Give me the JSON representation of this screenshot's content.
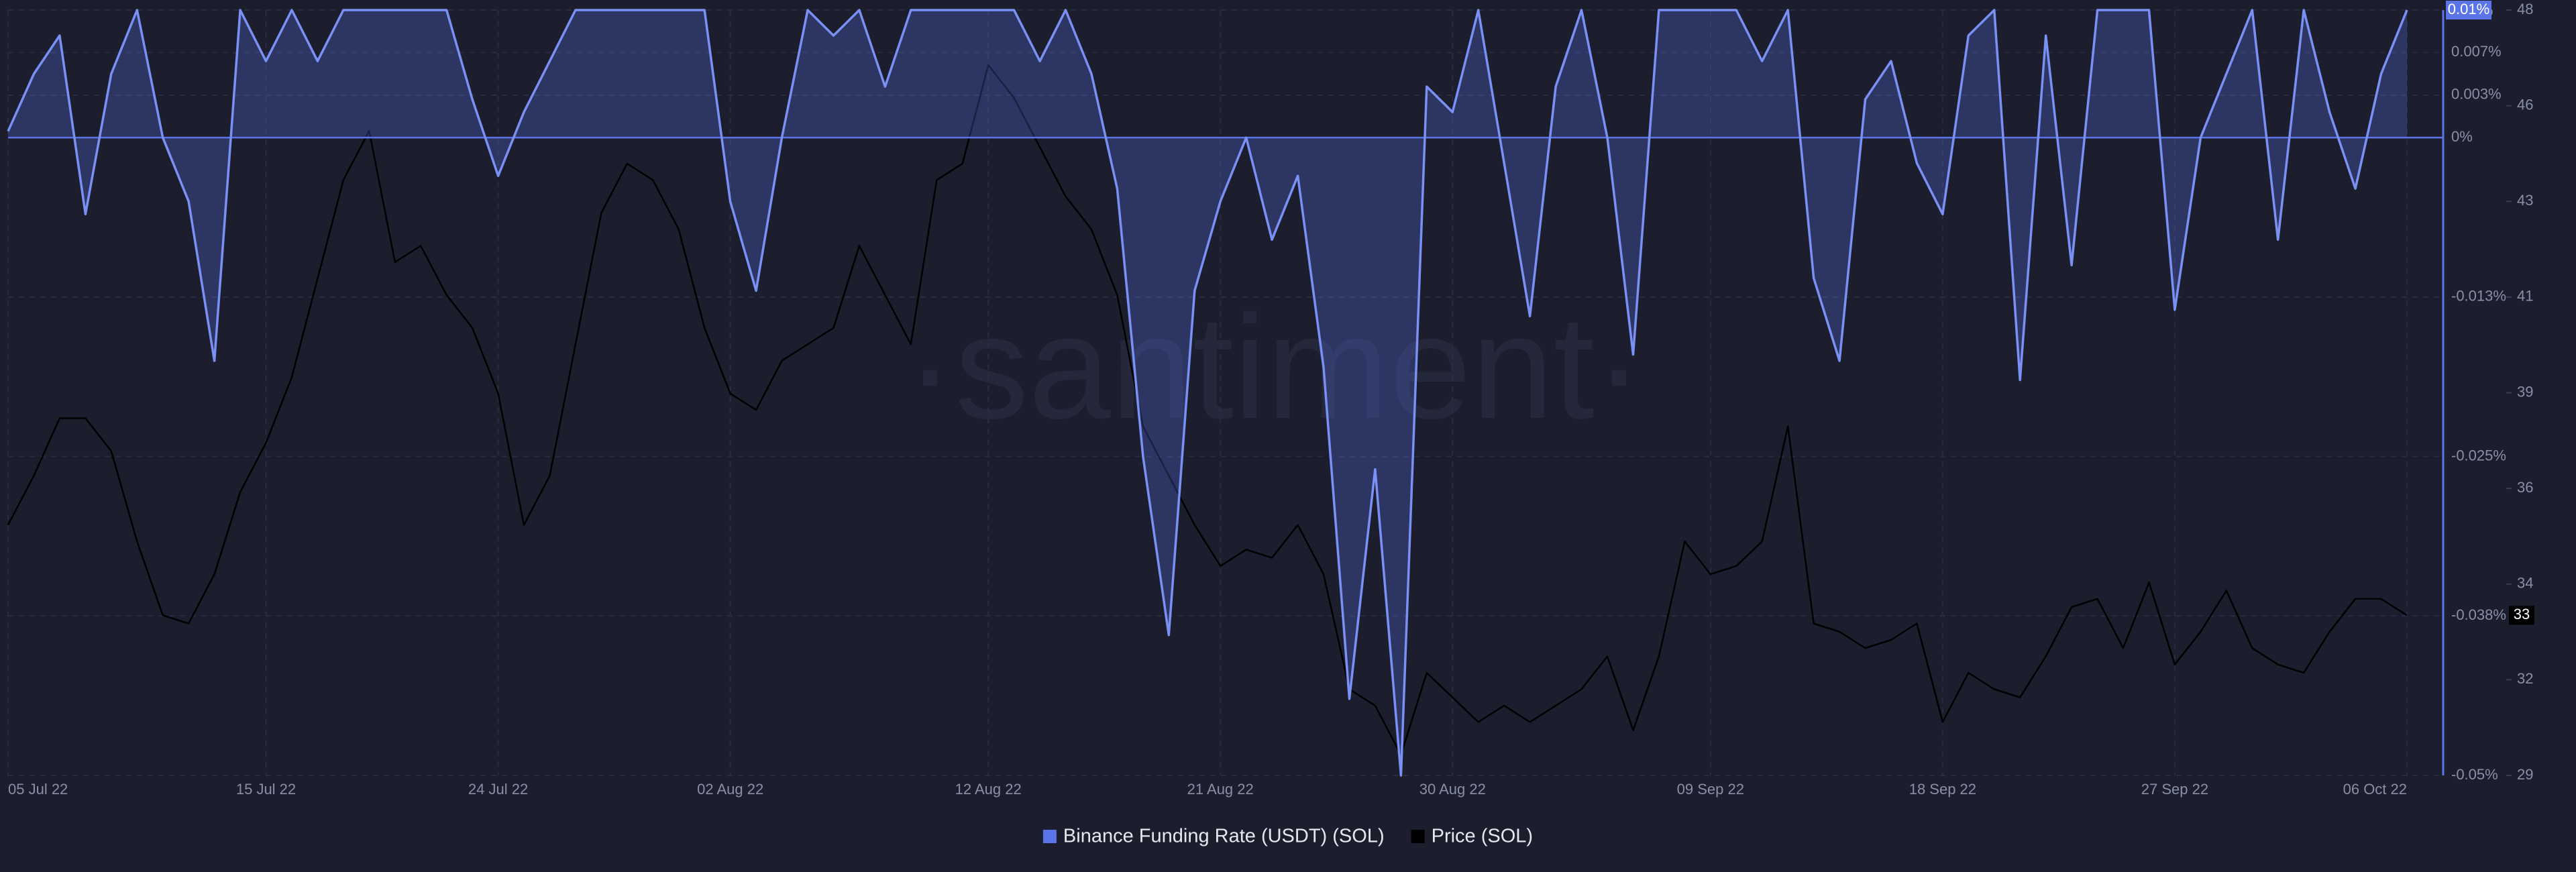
{
  "chart_data": {
    "type": "line",
    "watermark": "·santiment·",
    "x": [
      "2022-07-05",
      "2022-07-06",
      "2022-07-07",
      "2022-07-08",
      "2022-07-09",
      "2022-07-10",
      "2022-07-11",
      "2022-07-12",
      "2022-07-13",
      "2022-07-14",
      "2022-07-15",
      "2022-07-16",
      "2022-07-17",
      "2022-07-18",
      "2022-07-19",
      "2022-07-20",
      "2022-07-21",
      "2022-07-22",
      "2022-07-23",
      "2022-07-24",
      "2022-07-25",
      "2022-07-26",
      "2022-07-27",
      "2022-07-28",
      "2022-07-29",
      "2022-07-30",
      "2022-07-31",
      "2022-08-01",
      "2022-08-02",
      "2022-08-03",
      "2022-08-04",
      "2022-08-05",
      "2022-08-06",
      "2022-08-07",
      "2022-08-08",
      "2022-08-09",
      "2022-08-10",
      "2022-08-11",
      "2022-08-12",
      "2022-08-13",
      "2022-08-14",
      "2022-08-15",
      "2022-08-16",
      "2022-08-17",
      "2022-08-18",
      "2022-08-19",
      "2022-08-20",
      "2022-08-21",
      "2022-08-22",
      "2022-08-23",
      "2022-08-24",
      "2022-08-25",
      "2022-08-26",
      "2022-08-27",
      "2022-08-28",
      "2022-08-29",
      "2022-08-30",
      "2022-08-31",
      "2022-09-01",
      "2022-09-02",
      "2022-09-03",
      "2022-09-04",
      "2022-09-05",
      "2022-09-06",
      "2022-09-07",
      "2022-09-08",
      "2022-09-09",
      "2022-09-10",
      "2022-09-11",
      "2022-09-12",
      "2022-09-13",
      "2022-09-14",
      "2022-09-15",
      "2022-09-16",
      "2022-09-17",
      "2022-09-18",
      "2022-09-19",
      "2022-09-20",
      "2022-09-21",
      "2022-09-22",
      "2022-09-23",
      "2022-09-24",
      "2022-09-25",
      "2022-09-26",
      "2022-09-27",
      "2022-09-28",
      "2022-09-29",
      "2022-09-30",
      "2022-10-01",
      "2022-10-02",
      "2022-10-03",
      "2022-10-04",
      "2022-10-05",
      "2022-10-06"
    ],
    "xlim": [
      "2022-07-05",
      "2022-10-06"
    ],
    "xticks": [
      {
        "value": "2022-07-05",
        "label": "05 Jul 22"
      },
      {
        "value": "2022-07-15",
        "label": "15 Jul 22"
      },
      {
        "value": "2022-07-24",
        "label": "24 Jul 22"
      },
      {
        "value": "2022-08-02",
        "label": "02 Aug 22"
      },
      {
        "value": "2022-08-12",
        "label": "12 Aug 22"
      },
      {
        "value": "2022-08-21",
        "label": "21 Aug 22"
      },
      {
        "value": "2022-08-30",
        "label": "30 Aug 22"
      },
      {
        "value": "2022-09-09",
        "label": "09 Sep 22"
      },
      {
        "value": "2022-09-18",
        "label": "18 Sep 22"
      },
      {
        "value": "2022-09-27",
        "label": "27 Sep 22"
      },
      {
        "value": "2022-10-06",
        "label": "06 Oct 22"
      }
    ],
    "ylim": [
      -0.05,
      0.01
    ],
    "yticks": [
      {
        "value": 0.01,
        "label": "0.01%"
      },
      {
        "value": 0.00667,
        "label": "0.007%"
      },
      {
        "value": 0.00333,
        "label": "0.003%"
      },
      {
        "value": 0,
        "label": "0%"
      },
      {
        "value": -0.0125,
        "label": "-0.013%"
      },
      {
        "value": -0.025,
        "label": "-0.025%"
      },
      {
        "value": -0.0375,
        "label": "-0.038%"
      },
      {
        "value": -0.05,
        "label": "-0.05%"
      }
    ],
    "y2lim": [
      29.3,
      47.94
    ],
    "y2ticks": [
      {
        "value": 29.3,
        "label": "29"
      },
      {
        "value": 31.63,
        "label": "32"
      },
      {
        "value": 33.96,
        "label": "34"
      },
      {
        "value": 36.29,
        "label": "36"
      },
      {
        "value": 38.62,
        "label": "39"
      },
      {
        "value": 40.95,
        "label": "41"
      },
      {
        "value": 43.28,
        "label": "43"
      },
      {
        "value": 45.61,
        "label": "46"
      },
      {
        "value": 47.94,
        "label": "48"
      }
    ],
    "grid": true,
    "legend": "bottom",
    "series": [
      {
        "name": "Binance Funding Rate (USDT) (SOL)",
        "color": "#5b74e8",
        "axis": "y",
        "last_label": "0.01%",
        "values": [
          0.0005,
          0.005,
          0.008,
          -0.006,
          0.005,
          0.01,
          0.0,
          -0.005,
          -0.0175,
          0.01,
          0.006,
          0.01,
          0.006,
          0.01,
          0.01,
          0.01,
          0.01,
          0.01,
          0.003,
          -0.003,
          0.002,
          0.006,
          0.01,
          0.01,
          0.01,
          0.01,
          0.01,
          0.01,
          -0.005,
          -0.012,
          0.0,
          0.01,
          0.008,
          0.01,
          0.004,
          0.01,
          0.01,
          0.01,
          0.01,
          0.01,
          0.006,
          0.01,
          0.005,
          -0.004,
          -0.025,
          -0.039,
          -0.012,
          -0.005,
          0.0,
          -0.008,
          -0.003,
          -0.018,
          -0.044,
          -0.026,
          -0.05,
          0.004,
          0.002,
          0.01,
          -0.002,
          -0.014,
          0.004,
          0.01,
          0.0,
          -0.017,
          0.01,
          0.01,
          0.01,
          0.01,
          0.006,
          0.01,
          -0.011,
          -0.0175,
          0.003,
          0.006,
          -0.002,
          -0.006,
          0.008,
          0.01,
          -0.019,
          0.008,
          -0.01,
          0.01,
          0.01,
          0.01,
          -0.0135,
          0.0,
          0.005,
          0.01,
          -0.008,
          0.01,
          0.002,
          -0.004,
          0.005,
          0.01
        ]
      },
      {
        "name": "Price (SOL)",
        "color": "#000000",
        "axis": "y2",
        "last_label": "33",
        "values": [
          35.4,
          36.6,
          38.0,
          38.0,
          37.2,
          35.0,
          33.2,
          33.0,
          34.2,
          36.2,
          37.4,
          39.0,
          41.4,
          43.8,
          45.0,
          41.8,
          42.2,
          41.0,
          40.2,
          38.6,
          35.4,
          36.6,
          39.8,
          43.0,
          44.2,
          43.8,
          42.6,
          40.2,
          38.6,
          38.2,
          39.4,
          39.8,
          40.2,
          42.2,
          41.0,
          39.8,
          43.8,
          44.2,
          46.6,
          45.8,
          44.6,
          43.4,
          42.6,
          41.0,
          37.8,
          36.6,
          35.4,
          34.4,
          34.8,
          34.6,
          35.4,
          34.2,
          31.4,
          31.0,
          29.8,
          31.8,
          31.2,
          30.6,
          31.0,
          30.6,
          31.0,
          31.4,
          32.2,
          30.4,
          32.2,
          35.0,
          34.2,
          34.4,
          35.0,
          37.8,
          33.0,
          32.8,
          32.4,
          32.6,
          33.0,
          30.6,
          31.8,
          31.4,
          31.2,
          32.2,
          33.4,
          33.6,
          32.4,
          34.0,
          32.0,
          32.8,
          33.8,
          32.4,
          32.0,
          31.8,
          32.8,
          33.6,
          33.6,
          33.2
        ]
      }
    ]
  }
}
